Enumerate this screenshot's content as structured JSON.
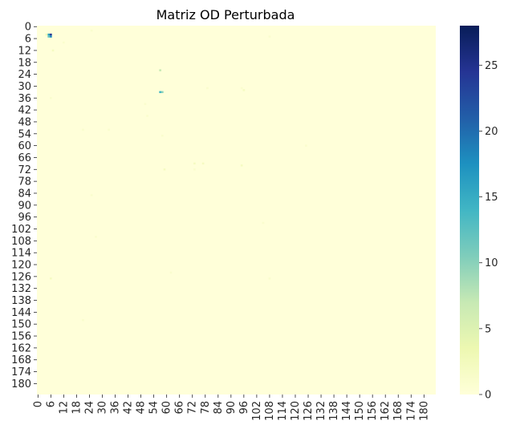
{
  "chart_data": {
    "type": "heatmap",
    "title": "Matriz OD Perturbada",
    "xlabel": "",
    "ylabel": "",
    "n_rows": 186,
    "n_cols": 186,
    "x_tick_labels": [
      "0",
      "6",
      "12",
      "18",
      "24",
      "30",
      "36",
      "42",
      "48",
      "54",
      "60",
      "66",
      "72",
      "78",
      "84",
      "90",
      "96",
      "102",
      "108",
      "114",
      "120",
      "126",
      "132",
      "138",
      "144",
      "150",
      "156",
      "162",
      "168",
      "174",
      "180"
    ],
    "y_tick_labels": [
      "0",
      "6",
      "12",
      "18",
      "24",
      "30",
      "36",
      "42",
      "48",
      "54",
      "60",
      "66",
      "72",
      "78",
      "84",
      "90",
      "96",
      "102",
      "108",
      "114",
      "120",
      "126",
      "132",
      "138",
      "144",
      "150",
      "156",
      "162",
      "168",
      "174",
      "180"
    ],
    "colormap": "YlGnBu",
    "colormap_stops": [
      "#ffffd9",
      "#edf8b1",
      "#c7e9b4",
      "#7fcdbb",
      "#41b6c4",
      "#1d91c0",
      "#225ea8",
      "#253494",
      "#081d58"
    ],
    "colorbar": {
      "range": [
        0,
        28
      ],
      "tick_values": [
        0,
        5,
        10,
        15,
        20,
        25
      ],
      "tick_labels": [
        "0",
        "5",
        "10",
        "15",
        "20",
        "25"
      ]
    },
    "background_value": 0,
    "notable_cells": [
      {
        "row": 4,
        "col": 5,
        "value": 16
      },
      {
        "row": 4,
        "col": 6,
        "value": 24
      },
      {
        "row": 5,
        "col": 5,
        "value": 12
      },
      {
        "row": 5,
        "col": 6,
        "value": 18
      },
      {
        "row": 22,
        "col": 57,
        "value": 7
      },
      {
        "row": 33,
        "col": 57,
        "value": 14
      },
      {
        "row": 33,
        "col": 58,
        "value": 10
      },
      {
        "row": 4,
        "col": 4,
        "value": 3
      },
      {
        "row": 12,
        "col": 7,
        "value": 2
      },
      {
        "row": 5,
        "col": 108,
        "value": 1
      },
      {
        "row": 32,
        "col": 96,
        "value": 2
      },
      {
        "row": 31,
        "col": 95,
        "value": 1
      },
      {
        "row": 31,
        "col": 79,
        "value": 1
      },
      {
        "row": 36,
        "col": 6,
        "value": 1
      },
      {
        "row": 52,
        "col": 21,
        "value": 1
      },
      {
        "row": 52,
        "col": 33,
        "value": 1
      },
      {
        "row": 69,
        "col": 73,
        "value": 2
      },
      {
        "row": 69,
        "col": 77,
        "value": 2
      },
      {
        "row": 70,
        "col": 95,
        "value": 2
      },
      {
        "row": 72,
        "col": 59,
        "value": 2
      },
      {
        "row": 72,
        "col": 73,
        "value": 1
      },
      {
        "row": 99,
        "col": 105,
        "value": 1
      },
      {
        "row": 106,
        "col": 27,
        "value": 1
      },
      {
        "row": 127,
        "col": 6,
        "value": 2
      },
      {
        "row": 127,
        "col": 108,
        "value": 1
      },
      {
        "row": 148,
        "col": 21,
        "value": 1
      },
      {
        "row": 39,
        "col": 50,
        "value": 1
      },
      {
        "row": 45,
        "col": 51,
        "value": 1
      },
      {
        "row": 2,
        "col": 25,
        "value": 1
      },
      {
        "row": 8,
        "col": 12,
        "value": 1
      },
      {
        "row": 55,
        "col": 58,
        "value": 1
      },
      {
        "row": 60,
        "col": 125,
        "value": 1
      },
      {
        "row": 85,
        "col": 25,
        "value": 1
      },
      {
        "row": 124,
        "col": 62,
        "value": 1
      }
    ]
  }
}
